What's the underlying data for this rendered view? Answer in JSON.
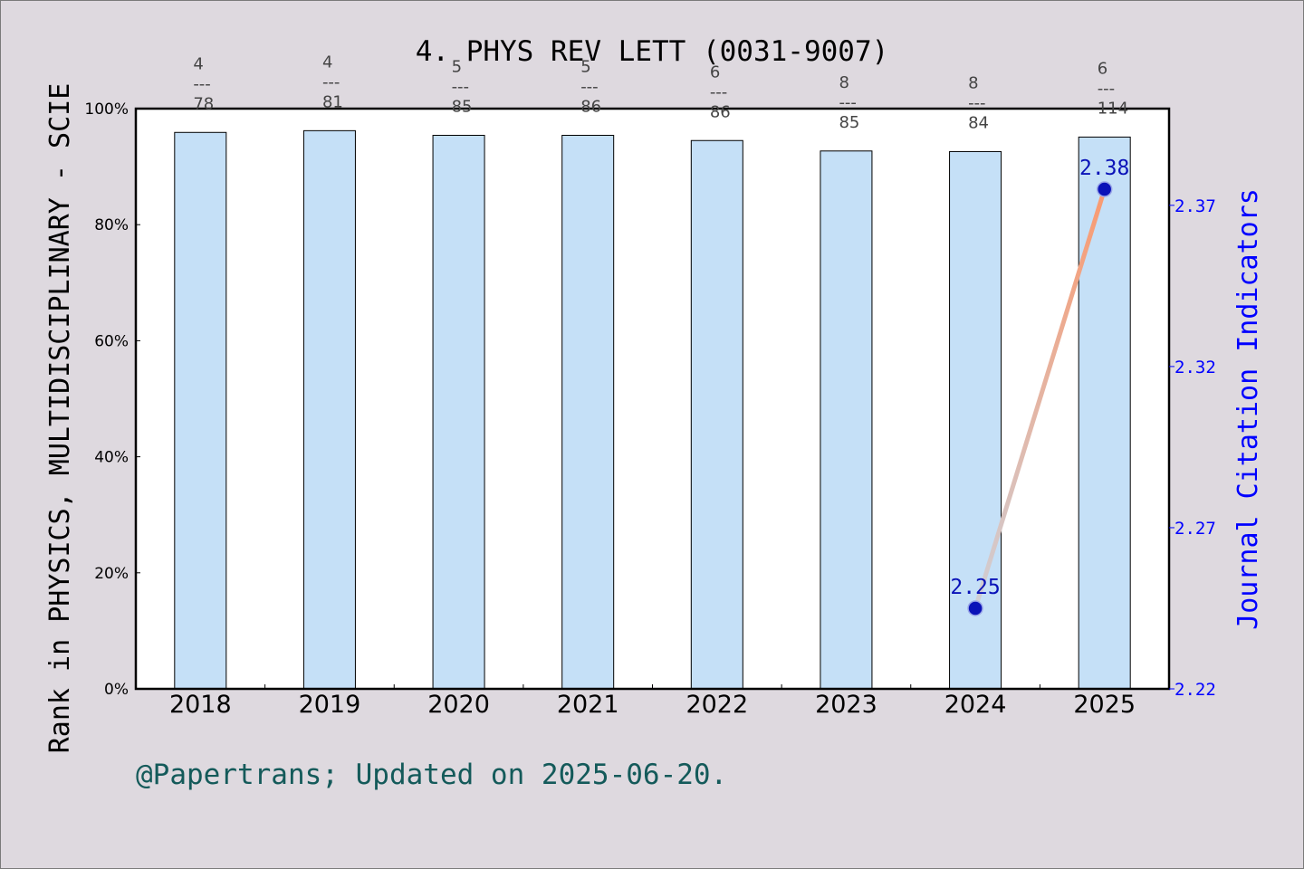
{
  "chart_data": {
    "type": "bar",
    "title": "4. PHYS REV LETT (0031-9007)",
    "ylabel": "Rank in PHYSICS, MULTIDISCIPLINARY - SCIE",
    "y2label": "Journal Citation Indicators",
    "footer": "@Papertrans; Updated on 2025-06-20.",
    "categories": [
      "2018",
      "2019",
      "2020",
      "2021",
      "2022",
      "2023",
      "2024",
      "2025"
    ],
    "values": [
      95.9,
      96.2,
      95.4,
      95.4,
      94.5,
      92.7,
      92.6,
      95.1
    ],
    "rank_labels": [
      {
        "rank": "4",
        "sep": "---",
        "total": "78"
      },
      {
        "rank": "4",
        "sep": "---",
        "total": "81"
      },
      {
        "rank": "5",
        "sep": "---",
        "total": "85"
      },
      {
        "rank": "5",
        "sep": "---",
        "total": "86"
      },
      {
        "rank": "6",
        "sep": "---",
        "total": "86"
      },
      {
        "rank": "8",
        "sep": "---",
        "total": "85"
      },
      {
        "rank": "8",
        "sep": "---",
        "total": "84"
      },
      {
        "rank": "6",
        "sep": "---",
        "total": "114"
      }
    ],
    "ylim": [
      0,
      100
    ],
    "yticks": [
      "0%",
      "20%",
      "40%",
      "60%",
      "80%",
      "100%"
    ],
    "y2lim": [
      2.22,
      2.4
    ],
    "y2ticks": [
      "2.22",
      "2.27",
      "2.32",
      "2.37"
    ],
    "line_series": {
      "years": [
        "2024",
        "2025"
      ],
      "values": [
        2.245,
        2.375
      ],
      "labels": [
        "2.25",
        "2.38"
      ]
    },
    "colors": {
      "bar_fill": "#c5e0f7",
      "line_start": "#cfcfd6",
      "line_end": "#fa9a70",
      "point": "#0a12b8",
      "right_axis": "#0000ff",
      "footer": "#145a5a",
      "background": "#ded9df"
    }
  }
}
